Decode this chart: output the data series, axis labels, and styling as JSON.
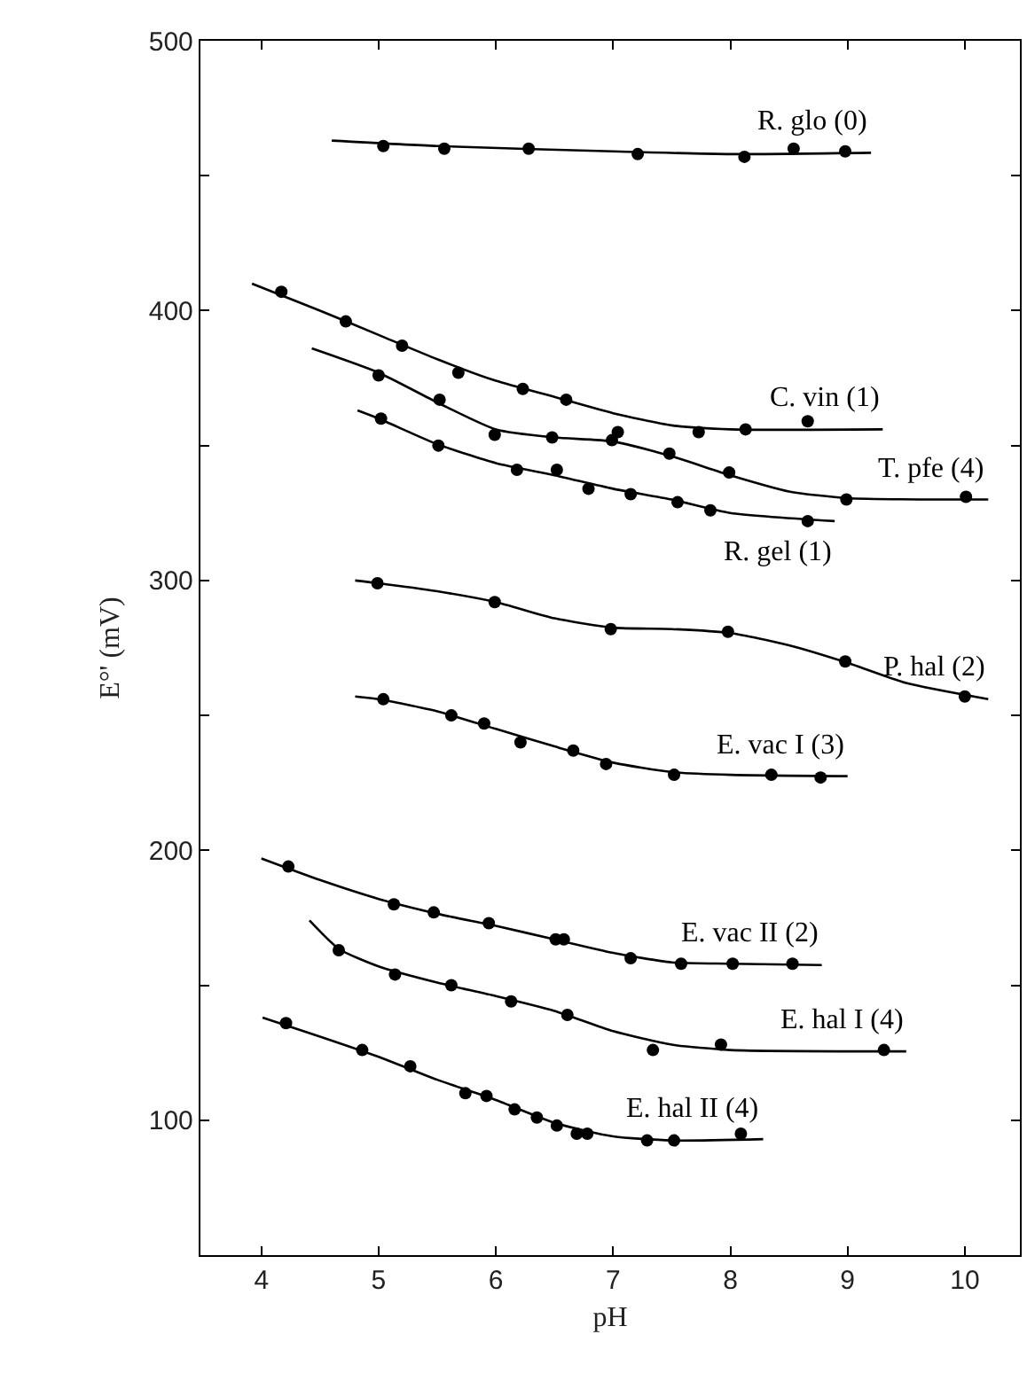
{
  "chart_data": {
    "type": "scatter",
    "xlabel": "pH",
    "ylabel": "E°' (mV)",
    "xlim": [
      3.48,
      10.47
    ],
    "ylim": [
      50,
      500
    ],
    "xticks": [
      4,
      5,
      6,
      7,
      8,
      9,
      10
    ],
    "yticks": [
      {
        "value": 100,
        "label": "100"
      },
      {
        "value": 150,
        "label": null
      },
      {
        "value": 200,
        "label": "200"
      },
      {
        "value": 250,
        "label": null
      },
      {
        "value": 300,
        "label": "300"
      },
      {
        "value": 350,
        "label": null
      },
      {
        "value": 400,
        "label": "400"
      },
      {
        "value": 450,
        "label": null
      },
      {
        "value": 500,
        "label": "500"
      }
    ],
    "legend": false,
    "marker": "circle",
    "line_style": "solid",
    "series": [
      {
        "color": "#000000",
        "x": [
          5.04,
          5.56,
          6.28,
          7.21,
          8.12,
          8.54,
          8.98
        ],
        "values": [
          461,
          460,
          460,
          458,
          457,
          460,
          459
        ]
      },
      {
        "type": "line",
        "marker": "none",
        "name": "R. glo (0)",
        "color": "#000000",
        "x": [
          4.6,
          5.5,
          7.0,
          8.0,
          9.2
        ],
        "values": [
          463,
          461,
          459,
          458,
          458.5
        ]
      },
      {
        "color": "#000000",
        "x": [
          4.17,
          4.72,
          5.2,
          5.68,
          6.23,
          6.6,
          7.73,
          8.13,
          8.66
        ],
        "values": [
          407,
          396,
          387,
          377,
          371,
          367,
          355,
          356,
          359
        ]
      },
      {
        "type": "line",
        "marker": "none",
        "name": "C. vin (1)",
        "color": "#000000",
        "x": [
          3.92,
          4.5,
          5.0,
          5.5,
          6.0,
          6.5,
          7.0,
          7.5,
          8.0,
          9.3
        ],
        "values": [
          410,
          400,
          391,
          382,
          374,
          368,
          362,
          357.5,
          356,
          356
        ]
      },
      {
        "color": "#000000",
        "x": [
          5.0,
          5.52,
          5.99,
          6.48,
          6.99,
          7.04,
          7.48,
          7.99,
          8.99,
          10.01
        ],
        "values": [
          376,
          367,
          354,
          353,
          352,
          355,
          347,
          340,
          330,
          331
        ]
      },
      {
        "type": "line",
        "marker": "none",
        "name": "T. pfe (4)",
        "color": "#000000",
        "x": [
          4.43,
          5.0,
          5.5,
          6.0,
          6.5,
          7.0,
          7.5,
          8.0,
          8.5,
          9.0,
          10.2
        ],
        "values": [
          386,
          377,
          366,
          356,
          353,
          351.5,
          346,
          339,
          333,
          330.5,
          330
        ]
      },
      {
        "color": "#000000",
        "x": [
          5.02,
          5.51,
          6.18,
          6.52,
          6.79,
          7.15,
          7.55,
          7.83,
          8.66
        ],
        "values": [
          360,
          350,
          341,
          341,
          334,
          332,
          329,
          326,
          322
        ]
      },
      {
        "type": "line",
        "marker": "none",
        "name": "R. gel (1)",
        "color": "#000000",
        "x": [
          4.82,
          5.0,
          5.5,
          6.0,
          6.5,
          7.0,
          7.5,
          8.0,
          8.89
        ],
        "values": [
          363,
          360,
          350.5,
          343.5,
          339,
          334,
          330,
          325,
          322
        ]
      },
      {
        "color": "#000000",
        "x": [
          4.99,
          5.99,
          6.98,
          7.98,
          8.98,
          10.0
        ],
        "values": [
          299,
          292,
          282,
          281,
          270,
          257
        ]
      },
      {
        "type": "line",
        "marker": "none",
        "name": "P. hal (2)",
        "color": "#000000",
        "x": [
          4.8,
          5.0,
          5.5,
          6.0,
          6.5,
          7.0,
          7.5,
          8.0,
          8.5,
          9.0,
          9.5,
          10.2
        ],
        "values": [
          300,
          299,
          296,
          292,
          286,
          282.5,
          282,
          280.5,
          276,
          269.5,
          262,
          256
        ]
      },
      {
        "color": "#000000",
        "x": [
          5.04,
          5.62,
          5.9,
          6.21,
          6.66,
          6.94,
          7.52,
          8.35,
          8.77
        ],
        "values": [
          256,
          250,
          247,
          240,
          237,
          232,
          228,
          228,
          227
        ]
      },
      {
        "type": "line",
        "marker": "none",
        "name": "E. vac I (3)",
        "color": "#000000",
        "x": [
          4.8,
          5.0,
          5.5,
          6.0,
          6.5,
          7.0,
          7.5,
          8.0,
          9.0
        ],
        "values": [
          257,
          256,
          251.5,
          245,
          238.5,
          232.5,
          229,
          228,
          227.5
        ]
      },
      {
        "color": "#000000",
        "x": [
          4.23,
          5.13,
          5.47,
          5.94,
          6.51,
          6.58,
          7.15,
          7.58,
          8.02,
          8.53
        ],
        "values": [
          194,
          180,
          177,
          173,
          167,
          167,
          160,
          158,
          158,
          158
        ]
      },
      {
        "type": "line",
        "marker": "none",
        "name": "E. vac II (2)",
        "color": "#000000",
        "x": [
          4.0,
          4.5,
          5.0,
          5.5,
          6.0,
          6.5,
          7.0,
          7.5,
          8.0,
          8.78
        ],
        "values": [
          197,
          189,
          182,
          176.5,
          172,
          167,
          162,
          158.5,
          158,
          157.5
        ]
      },
      {
        "color": "#000000",
        "x": [
          4.66,
          5.14,
          5.62,
          6.13,
          6.61,
          7.34,
          7.92,
          9.31
        ],
        "values": [
          163,
          154,
          150,
          144,
          139,
          126,
          128,
          126
        ]
      },
      {
        "type": "line",
        "marker": "none",
        "name": "E. hal I (4)",
        "color": "#000000",
        "x": [
          4.41,
          4.66,
          5.0,
          5.5,
          6.0,
          6.5,
          7.0,
          7.5,
          8.0,
          9.5
        ],
        "values": [
          174,
          163.5,
          157,
          151,
          146,
          140.5,
          133,
          128,
          126,
          125.5
        ]
      },
      {
        "color": "#000000",
        "x": [
          4.21,
          4.86,
          5.27,
          5.74,
          5.92,
          6.16,
          6.35,
          6.52,
          6.69,
          6.78,
          7.29,
          7.52,
          8.09
        ],
        "values": [
          136,
          126,
          120,
          110,
          109,
          104,
          101,
          98,
          95,
          95,
          92.5,
          92.5,
          95
        ]
      },
      {
        "type": "line",
        "marker": "none",
        "name": "E. hal II (4)",
        "color": "#000000",
        "x": [
          4.01,
          4.5,
          5.0,
          5.5,
          6.0,
          6.5,
          7.0,
          7.5,
          8.28
        ],
        "values": [
          138,
          131,
          123.5,
          115,
          107.5,
          99,
          94,
          92.5,
          93
        ]
      }
    ]
  }
}
